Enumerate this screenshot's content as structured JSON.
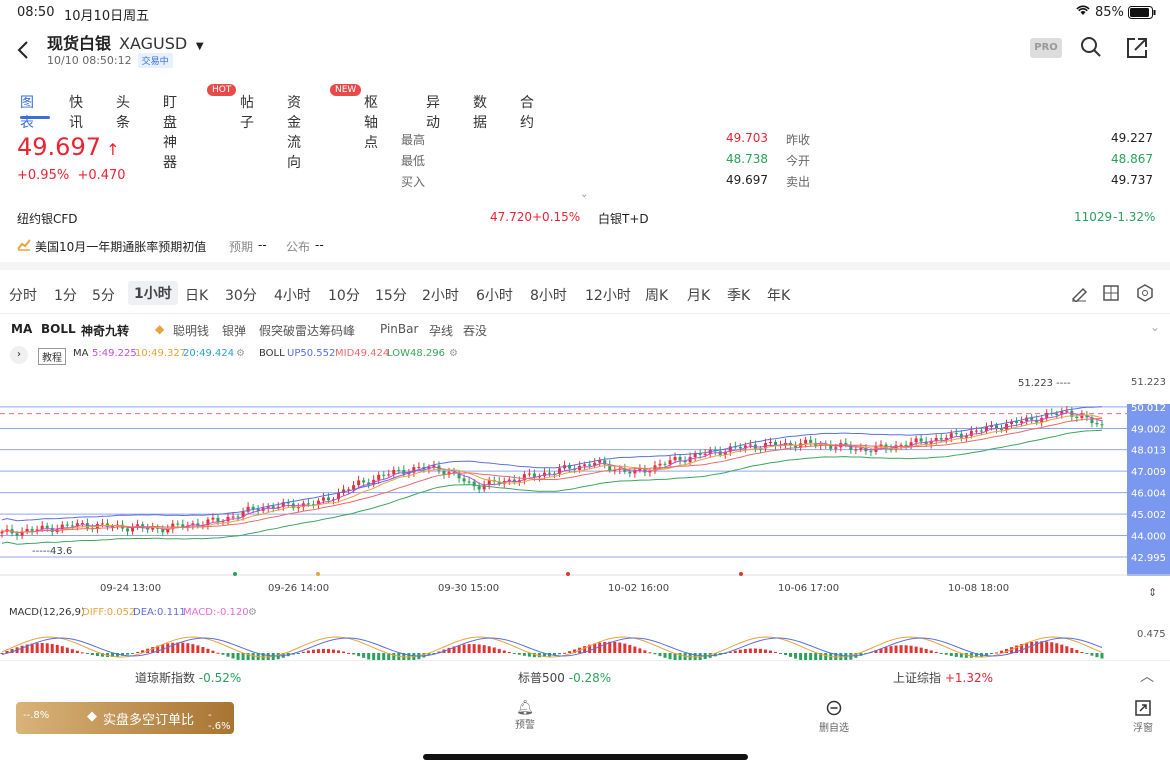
{
  "status_bar": {
    "time": "08:50",
    "date": "10月10日周五",
    "battery": "85%"
  },
  "header": {
    "name": "现货白银",
    "symbol": "XAGUSD",
    "datetime": "10/10 08:50:12",
    "state": "交易中",
    "pro": "PRO"
  },
  "tabs": [
    {
      "label": "图表"
    },
    {
      "label": "快讯"
    },
    {
      "label": "头条"
    },
    {
      "label": "盯盘神器",
      "tag": "HOT"
    },
    {
      "label": "帖子"
    },
    {
      "label": "资金流向",
      "tag": "NEW"
    },
    {
      "label": "枢轴点"
    },
    {
      "label": "异动"
    },
    {
      "label": "数据"
    },
    {
      "label": "合约"
    }
  ],
  "quote": {
    "price": "49.697",
    "change_pct": "+0.95%",
    "change": "+0.470",
    "high_label": "最高",
    "high": "49.703",
    "low_label": "最低",
    "low": "48.738",
    "bid_label": "买入",
    "bid": "49.697",
    "prev_label": "昨收",
    "prev": "49.227",
    "open_label": "今开",
    "open": "48.867",
    "ask_label": "卖出",
    "ask": "49.737"
  },
  "related": [
    {
      "name": "纽约银CFD",
      "value": "47.720",
      "change": "+0.15%"
    },
    {
      "name": "白银T+D",
      "value": "11029",
      "change": "-1.32%"
    }
  ],
  "event": {
    "text": "美国10月一年期通胀率预期初值",
    "expected_label": "预期",
    "expected": "--",
    "actual_label": "公布",
    "actual": "--"
  },
  "periods": [
    "分时",
    "1分",
    "5分",
    "1小时",
    "日K",
    "30分",
    "4小时",
    "10分",
    "15分",
    "2小时",
    "6小时",
    "8小时",
    "12小时",
    "周K",
    "月K",
    "季K",
    "年K"
  ],
  "active_period": "1小时",
  "indicators": [
    "MA",
    "BOLL",
    "神奇九转",
    "聪明钱",
    "银弹",
    "假突破雷达",
    "筹码峰",
    "PinBar",
    "孕线",
    "吞没"
  ],
  "legend": {
    "tutorial": "教程",
    "ma_label": "MA",
    "ma5": "5:49.225",
    "ma10": "10:49.327",
    "ma20": "20:49.424",
    "boll_label": "BOLL",
    "boll_up": "UP50.552",
    "boll_mid": "MID49.424",
    "boll_low": "LOW48.296"
  },
  "y_axis": [
    "51.223",
    "50.012",
    "49.002",
    "48.013",
    "47.009",
    "46.004",
    "45.002",
    "44.000",
    "42.995"
  ],
  "high_marker": "51.223",
  "low_marker": "43.6",
  "x_axis": [
    "09-24 13:00",
    "09-26 14:00",
    "09-30 15:00",
    "10-02 16:00",
    "10-06 17:00",
    "10-08 18:00"
  ],
  "macd": {
    "label": "MACD(12,26,9)",
    "diff": "DIFF:0.052",
    "dea": "DEA:0.111",
    "macd": "MACD:-0.120",
    "axis": "0.475"
  },
  "indices": [
    {
      "name": "道琼斯指数",
      "change": "-0.52%"
    },
    {
      "name": "标普500",
      "change": "-0.28%"
    },
    {
      "name": "上证综指",
      "change": "+1.32%"
    }
  ],
  "bottom": {
    "ls_left": "--.8%",
    "ls_label": "实盘多空订单比",
    "ls_right": "--.6%",
    "nav": [
      {
        "label": "预警"
      },
      {
        "label": "删自选"
      },
      {
        "label": "浮窗"
      }
    ]
  },
  "colors": {
    "up": "#e23333",
    "down": "#2aa15c",
    "accent": "#3a6fd8"
  }
}
